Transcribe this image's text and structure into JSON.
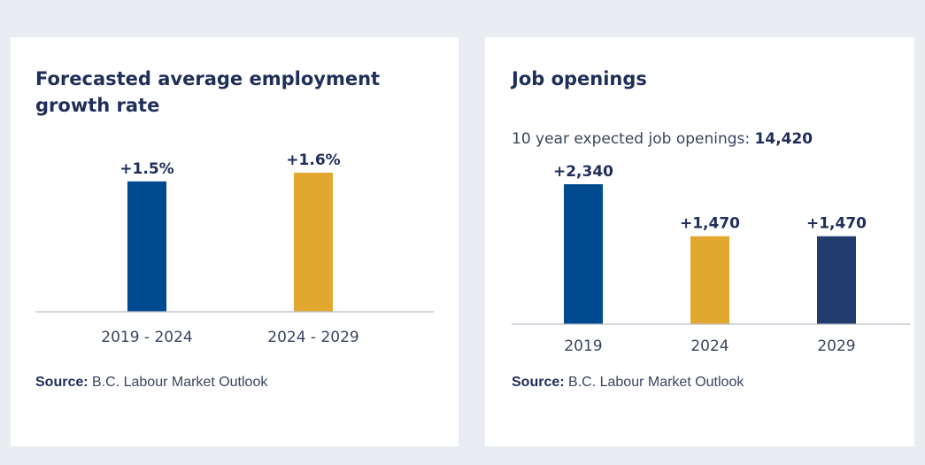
{
  "panels": [
    {
      "title": "Forecasted average employment growth rate",
      "subtitle": null,
      "source_label": "Source:",
      "source_text": "B.C. Labour Market Outlook"
    },
    {
      "title": "Job openings",
      "subtitle_label": "10 year expected job openings: ",
      "subtitle_value": "14,420",
      "source_label": "Source:",
      "source_text": "B.C. Labour Market Outlook"
    }
  ],
  "chart_data": [
    {
      "type": "bar",
      "title": "Forecasted average employment growth rate",
      "xlabel": "",
      "ylabel": "",
      "categories": [
        "2019 - 2024",
        "2024 - 2029"
      ],
      "values": [
        1.5,
        1.6
      ],
      "labels": [
        "+1.5%",
        "+1.6%"
      ],
      "colors": [
        "#004a8f",
        "#e2a72e"
      ],
      "ylim": [
        0,
        1.6
      ],
      "grid": false,
      "legend": "none"
    },
    {
      "type": "bar",
      "title": "Job openings",
      "xlabel": "",
      "ylabel": "",
      "categories": [
        "2019",
        "2024",
        "2029"
      ],
      "values": [
        2340,
        1470,
        1470
      ],
      "labels": [
        "+2,340",
        "+1,470",
        "+1,470"
      ],
      "colors": [
        "#004a8f",
        "#e2a72e",
        "#233c6e"
      ],
      "ylim": [
        0,
        2340
      ],
      "grid": false,
      "legend": "none"
    }
  ]
}
